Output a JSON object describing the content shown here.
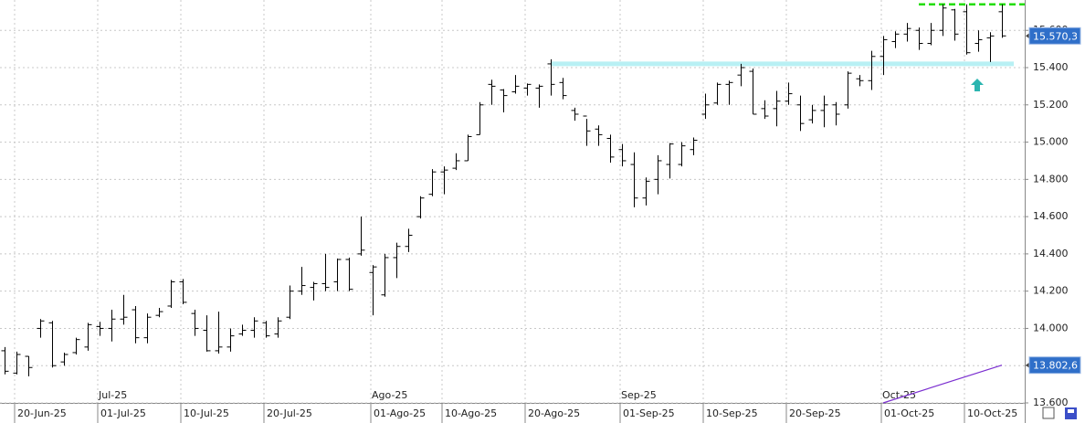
{
  "chart_data": {
    "type": "ohlc",
    "categories": [
      null,
      "20-Jun-25",
      null,
      null,
      null,
      null,
      null,
      null,
      "01-Jul-25",
      null,
      null,
      null,
      null,
      null,
      null,
      "10-Jul-25",
      null,
      null,
      null,
      null,
      null,
      null,
      "20-Jul-25",
      null,
      null,
      null,
      null,
      null,
      null,
      null,
      null,
      "01-Ago-25",
      null,
      null,
      null,
      null,
      null,
      "10-Ago-25",
      null,
      null,
      null,
      null,
      null,
      null,
      "20-Ago-25",
      null,
      null,
      null,
      null,
      null,
      null,
      null,
      "01-Sep-25",
      null,
      null,
      null,
      null,
      null,
      null,
      "10-Sep-25",
      null,
      null,
      null,
      null,
      null,
      null,
      "20-Sep-25",
      null,
      null,
      null,
      null,
      null,
      null,
      null,
      "01-Oct-25",
      null,
      null,
      null,
      null,
      null,
      null,
      "10-Oct-25",
      null,
      null,
      null
    ],
    "months": [
      null,
      null,
      null,
      null,
      null,
      null,
      null,
      null,
      "Jul-25",
      null,
      null,
      null,
      null,
      null,
      null,
      null,
      null,
      null,
      null,
      null,
      null,
      null,
      null,
      null,
      null,
      null,
      null,
      null,
      null,
      null,
      null,
      "Ago-25",
      null,
      null,
      null,
      null,
      null,
      null,
      null,
      null,
      null,
      null,
      null,
      null,
      null,
      null,
      null,
      null,
      null,
      null,
      null,
      null,
      "Sep-25",
      null,
      null,
      null,
      null,
      null,
      null,
      null,
      null,
      null,
      null,
      null,
      null,
      null,
      null,
      null,
      null,
      null,
      null,
      null,
      null,
      null,
      "Oct-25",
      null,
      null,
      null,
      null,
      null,
      null,
      null,
      null,
      null,
      null
    ],
    "open": [
      13880,
      13760,
      13850,
      14000,
      14030,
      13820,
      13870,
      13900,
      14010,
      14000,
      14050,
      14100,
      13950,
      14070,
      14120,
      14250,
      14080,
      13990,
      13880,
      13900,
      13970,
      13990,
      14030,
      13970,
      14060,
      14200,
      14220,
      14240,
      14250,
      14370,
      14400,
      14300,
      14180,
      14380,
      14440,
      14600,
      14720,
      14840,
      14860,
      14900,
      15040,
      15310,
      15280,
      15270,
      15290,
      15290,
      15420,
      15320,
      15170,
      15140,
      15070,
      15020,
      14960,
      14880,
      14700,
      14800,
      14880,
      14880,
      14960,
      15150,
      15210,
      15310,
      15360,
      15380,
      15180,
      15180,
      15220,
      15200,
      15120,
      15170,
      15200,
      15200,
      15340,
      15330,
      15460,
      15540,
      15580,
      15600,
      15530,
      15600,
      15710,
      15700,
      15530,
      15560,
      15700
    ],
    "high": [
      13900,
      13875,
      13851,
      14050,
      14040,
      13870,
      13950,
      14030,
      14035,
      14100,
      14180,
      14120,
      14080,
      14110,
      14260,
      14265,
      14100,
      14070,
      14090,
      14000,
      14020,
      14060,
      14040,
      14060,
      14230,
      14330,
      14250,
      14400,
      14375,
      14380,
      14600,
      14340,
      14400,
      14460,
      14535,
      14710,
      14855,
      14870,
      14940,
      15040,
      15215,
      15335,
      15285,
      15360,
      15315,
      15310,
      15445,
      15345,
      15185,
      15125,
      15090,
      15040,
      14990,
      14945,
      14810,
      14930,
      14995,
      15000,
      15025,
      15260,
      15320,
      15330,
      15420,
      15395,
      15225,
      15275,
      15320,
      15250,
      15200,
      15250,
      15215,
      15380,
      15360,
      15490,
      15570,
      15595,
      15640,
      15615,
      15640,
      15740,
      15715,
      15740,
      15600,
      15590,
      15740
    ],
    "low": [
      13753,
      13753,
      13743,
      13950,
      13790,
      13800,
      13860,
      13880,
      13960,
      13930,
      14020,
      13920,
      13920,
      14060,
      14110,
      14130,
      13960,
      13875,
      13865,
      13875,
      13960,
      13950,
      13950,
      13950,
      14050,
      14180,
      14150,
      14200,
      14200,
      14200,
      14390,
      14070,
      14170,
      14270,
      14410,
      14590,
      14710,
      14720,
      14850,
      14900,
      15040,
      15200,
      15160,
      15260,
      15250,
      15185,
      15250,
      15230,
      15115,
      14980,
      14980,
      14890,
      14870,
      14650,
      14660,
      14720,
      14805,
      14870,
      14930,
      15125,
      15200,
      15200,
      15300,
      15150,
      15125,
      15085,
      15200,
      15060,
      15100,
      15080,
      15090,
      15180,
      15300,
      15280,
      15360,
      15505,
      15540,
      15495,
      15520,
      15570,
      15545,
      15470,
      15485,
      15430,
      15560
    ],
    "close": [
      13770,
      13860,
      13790,
      14040,
      13800,
      13860,
      13940,
      14020,
      14000,
      14050,
      14060,
      13950,
      14060,
      14090,
      14250,
      14140,
      14000,
      13880,
      13900,
      13960,
      13990,
      14040,
      13960,
      14040,
      14200,
      14230,
      14240,
      14220,
      14370,
      14210,
      14420,
      14330,
      14380,
      14440,
      14500,
      14700,
      14840,
      14850,
      14900,
      15030,
      15200,
      15300,
      15250,
      15300,
      15310,
      15300,
      15310,
      15250,
      15150,
      15060,
      15040,
      14920,
      14900,
      14700,
      14790,
      14900,
      14990,
      14980,
      15010,
      15200,
      15310,
      15320,
      15400,
      15150,
      15140,
      15220,
      15260,
      15100,
      15170,
      15200,
      15150,
      15370,
      15330,
      15460,
      15550,
      15580,
      15610,
      15530,
      15600,
      15720,
      15580,
      15480,
      15550,
      15570,
      15570.3
    ],
    "color": "#000000",
    "ylim": [
      13600,
      15763
    ],
    "yticks": [
      {
        "value": 13600,
        "label": "13.600"
      },
      {
        "value": 13800,
        "label": "13.800"
      },
      {
        "value": 14000,
        "label": "14.000"
      },
      {
        "value": 14200,
        "label": "14.200"
      },
      {
        "value": 14400,
        "label": "14.400"
      },
      {
        "value": 14600,
        "label": "14.600"
      },
      {
        "value": 14800,
        "label": "14.800"
      },
      {
        "value": 15000,
        "label": "15.000"
      },
      {
        "value": 15200,
        "label": "15.200"
      },
      {
        "value": 15400,
        "label": "15.400"
      },
      {
        "value": 15600,
        "label": "15.600"
      }
    ],
    "grid": true,
    "last_price": {
      "value": 15570.3,
      "label": "15.570,3",
      "color": "#2f6fc9"
    },
    "indicator": {
      "values": [
        13600,
        13802.6
      ],
      "label": "13.802,6",
      "color": "#7b2fd0"
    },
    "support": {
      "value": 15420,
      "color": "#b8f0f4"
    },
    "resistance": {
      "value": 15740,
      "color": "#22dd00"
    }
  }
}
